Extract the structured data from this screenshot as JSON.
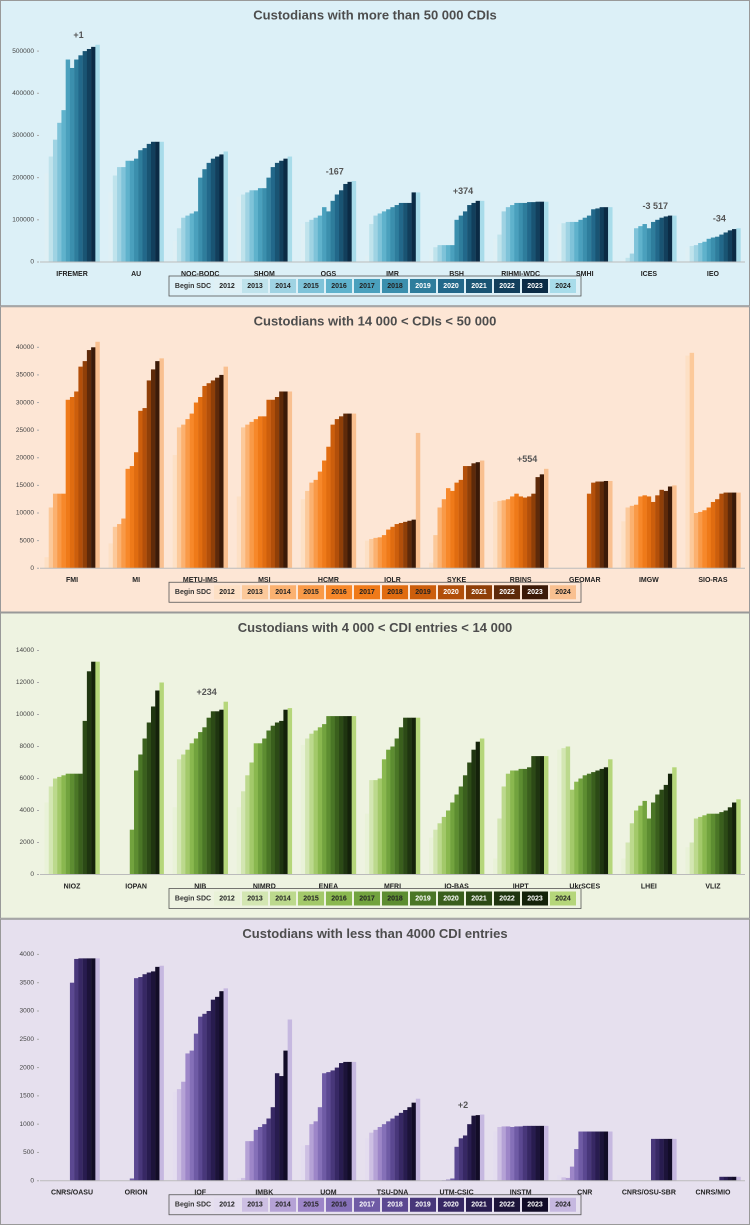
{
  "chart_data": [
    {
      "type": "bar",
      "title": "Custodians with more than 50 000 CDIs",
      "background": "#dcf0f7",
      "legend_title": "Begin SDC",
      "ylim": [
        0,
        550000
      ],
      "yticks": [
        0,
        100000,
        200000,
        300000,
        400000,
        500000
      ],
      "categories": [
        "IFREMER",
        "AU",
        "NOC-BODC",
        "SHOM",
        "OGS",
        "IMR",
        "BSH",
        "RIHMI-WDC",
        "SMHI",
        "ICES",
        "IEO"
      ],
      "series": [
        {
          "name": "2012",
          "color": "#dff0f5"
        },
        {
          "name": "2013",
          "color": "#bfe3ec"
        },
        {
          "name": "2014",
          "color": "#9fd3e3"
        },
        {
          "name": "2015",
          "color": "#7fc3d9"
        },
        {
          "name": "2016",
          "color": "#5fb2cc"
        },
        {
          "name": "2017",
          "color": "#4aa0bd"
        },
        {
          "name": "2018",
          "color": "#3b8fad"
        },
        {
          "name": "2019",
          "color": "#2e7d9c"
        },
        {
          "name": "2020",
          "color": "#22688a"
        },
        {
          "name": "2021",
          "color": "#195473"
        },
        {
          "name": "2022",
          "color": "#123f5c"
        },
        {
          "name": "2023",
          "color": "#0b2b45"
        },
        {
          "name": "2024",
          "color": "#a8dcea"
        }
      ],
      "values": [
        [
          210000,
          250000,
          290000,
          330000,
          360000,
          480000,
          460000,
          480000,
          490000,
          500000,
          505000,
          510000,
          515000
        ],
        [
          165000,
          205000,
          225000,
          225000,
          240000,
          240000,
          245000,
          265000,
          270000,
          280000,
          285000,
          285000,
          285000
        ],
        [
          50000,
          80000,
          105000,
          110000,
          115000,
          120000,
          200000,
          220000,
          235000,
          245000,
          250000,
          255000,
          262000
        ],
        [
          155000,
          160000,
          165000,
          170000,
          170000,
          175000,
          175000,
          200000,
          225000,
          235000,
          240000,
          245000,
          250000
        ],
        [
          90000,
          95000,
          100000,
          105000,
          110000,
          130000,
          120000,
          145000,
          160000,
          170000,
          185000,
          190000,
          192000
        ],
        [
          15000,
          90000,
          110000,
          115000,
          120000,
          125000,
          130000,
          135000,
          140000,
          140000,
          140000,
          165000,
          165000
        ],
        [
          30000,
          35000,
          40000,
          40000,
          40000,
          40000,
          100000,
          110000,
          120000,
          135000,
          140000,
          145000,
          145000
        ],
        [
          55000,
          65000,
          120000,
          130000,
          135000,
          140000,
          140000,
          140000,
          142000,
          142000,
          143000,
          143000,
          143000
        ],
        [
          90000,
          92000,
          95000,
          95000,
          95000,
          100000,
          105000,
          110000,
          125000,
          127000,
          130000,
          130000,
          130000
        ],
        [
          5000,
          10000,
          20000,
          80000,
          85000,
          90000,
          80000,
          95000,
          100000,
          105000,
          108000,
          110000,
          110000
        ],
        [
          35000,
          38000,
          40000,
          45000,
          48000,
          55000,
          58000,
          60000,
          65000,
          70000,
          75000,
          78000,
          80000
        ]
      ],
      "annotations": [
        {
          "category": "IFREMER",
          "text": "+1"
        },
        {
          "category": "OGS",
          "text": "-167"
        },
        {
          "category": "BSH",
          "text": "+374"
        },
        {
          "category": "ICES",
          "text": "-3 517"
        },
        {
          "category": "IEO",
          "text": "-34"
        }
      ]
    },
    {
      "type": "bar",
      "title": "Custodians with 14 000 < CDIs < 50 000",
      "background": "#fde6d5",
      "legend_title": "Begin SDC",
      "ylim": [
        0,
        42000
      ],
      "yticks": [
        0,
        5000,
        10000,
        15000,
        20000,
        25000,
        30000,
        35000,
        40000
      ],
      "categories": [
        "FMI",
        "MI",
        "METU-IMS",
        "MSI",
        "HCMR",
        "IOLR",
        "SYKE",
        "RBINS",
        "GEOMAR",
        "IMGW",
        "SIO-RAS"
      ],
      "series": [
        {
          "name": "2012",
          "color": "#fde0c5"
        },
        {
          "name": "2013",
          "color": "#fcc99a"
        },
        {
          "name": "2014",
          "color": "#fbb170"
        },
        {
          "name": "2015",
          "color": "#f99a48"
        },
        {
          "name": "2016",
          "color": "#f7882a"
        },
        {
          "name": "2017",
          "color": "#ef7a19"
        },
        {
          "name": "2018",
          "color": "#e06c10"
        },
        {
          "name": "2019",
          "color": "#cc5e0c"
        },
        {
          "name": "2020",
          "color": "#b24f0a"
        },
        {
          "name": "2021",
          "color": "#8f3f08"
        },
        {
          "name": "2022",
          "color": "#5e2a0a"
        },
        {
          "name": "2023",
          "color": "#3b1a08"
        },
        {
          "name": "2024",
          "color": "#f9c090"
        }
      ],
      "values": [
        [
          2000,
          11000,
          13500,
          13500,
          13500,
          30500,
          31000,
          32000,
          36500,
          37500,
          39500,
          40000,
          41000
        ],
        [
          4500,
          7500,
          8000,
          9000,
          18000,
          18500,
          21000,
          28500,
          29000,
          34000,
          36000,
          37500,
          38000
        ],
        [
          20500,
          25500,
          26000,
          27000,
          28000,
          30000,
          31000,
          33000,
          33500,
          34000,
          34500,
          35000,
          36500
        ],
        [
          13000,
          25500,
          26000,
          26500,
          27000,
          27500,
          27500,
          30500,
          30500,
          31000,
          32000,
          32000,
          32000
        ],
        [
          12500,
          14000,
          15500,
          16000,
          17500,
          19500,
          22000,
          26000,
          27000,
          27500,
          28000,
          28000,
          28000
        ],
        [
          5000,
          5300,
          5500,
          5600,
          6000,
          7000,
          7500,
          8000,
          8200,
          8400,
          8600,
          8800,
          24500
        ],
        [
          1000,
          6000,
          11000,
          12500,
          14500,
          14000,
          15500,
          16000,
          18500,
          18500,
          19000,
          19200,
          19500
        ],
        [
          12000,
          12200,
          12300,
          12500,
          13000,
          13500,
          13000,
          12800,
          13000,
          13500,
          16500,
          17000,
          18000
        ],
        [
          0,
          0,
          0,
          0,
          0,
          0,
          0,
          13500,
          15500,
          15700,
          15700,
          15800,
          15800
        ],
        [
          8500,
          11000,
          11300,
          11500,
          13000,
          13200,
          13000,
          12000,
          13200,
          14200,
          14000,
          14800,
          15000
        ],
        [
          38500,
          39000,
          10000,
          10200,
          10500,
          11000,
          12000,
          12500,
          13500,
          13700,
          13700,
          13700,
          13700
        ]
      ],
      "annotations": [
        {
          "category": "RBINS",
          "text": "+554"
        }
      ]
    },
    {
      "type": "bar",
      "title": "Custodians with 4 000 < CDI entries < 14 000",
      "background": "#eef3e1",
      "legend_title": "Begin SDC",
      "ylim": [
        0,
        14500
      ],
      "yticks": [
        0,
        2000,
        4000,
        6000,
        8000,
        10000,
        12000,
        14000
      ],
      "categories": [
        "NIOZ",
        "IOPAN",
        "NIB",
        "NIMRD",
        "ENEA",
        "MFRI",
        "IO-BAS",
        "IHPT",
        "UkrSCES",
        "LHEI",
        "VLIZ"
      ],
      "series": [
        {
          "name": "2012",
          "color": "#e9f2d8"
        },
        {
          "name": "2013",
          "color": "#d3e6b2"
        },
        {
          "name": "2014",
          "color": "#bcd98d"
        },
        {
          "name": "2015",
          "color": "#a3c96a"
        },
        {
          "name": "2016",
          "color": "#8ab84f"
        },
        {
          "name": "2017",
          "color": "#72a33e"
        },
        {
          "name": "2018",
          "color": "#5d8d31"
        },
        {
          "name": "2019",
          "color": "#4a7626"
        },
        {
          "name": "2020",
          "color": "#3a5f1d"
        },
        {
          "name": "2021",
          "color": "#2c4a16"
        },
        {
          "name": "2022",
          "color": "#1f3510"
        },
        {
          "name": "2023",
          "color": "#14220a"
        },
        {
          "name": "2024",
          "color": "#b5d67a"
        }
      ],
      "values": [
        [
          4500,
          5500,
          6000,
          6100,
          6200,
          6300,
          6300,
          6300,
          6300,
          9600,
          12700,
          13300,
          13300
        ],
        [
          0,
          0,
          0,
          0,
          0,
          2800,
          6500,
          7500,
          8500,
          9500,
          10500,
          11500,
          12000
        ],
        [
          4200,
          7200,
          7500,
          7800,
          8200,
          8500,
          8900,
          9200,
          9800,
          10200,
          10200,
          10300,
          10800
        ],
        [
          4200,
          5200,
          6200,
          7000,
          8200,
          8200,
          8500,
          9000,
          9300,
          9500,
          9600,
          10300,
          10400
        ],
        [
          8100,
          8500,
          8800,
          9000,
          9200,
          9400,
          9900,
          9900,
          9900,
          9900,
          9900,
          9900,
          9900
        ],
        [
          3800,
          5900,
          5900,
          6000,
          7200,
          7800,
          8000,
          8500,
          9200,
          9800,
          9800,
          9800,
          9800
        ],
        [
          2300,
          2800,
          3200,
          3600,
          4000,
          4500,
          5000,
          5500,
          6200,
          7000,
          7800,
          8300,
          8500
        ],
        [
          1000,
          3500,
          5500,
          6300,
          6500,
          6500,
          6600,
          6600,
          6700,
          7400,
          7400,
          7400,
          7400
        ],
        [
          7800,
          7900,
          8000,
          5300,
          5800,
          6000,
          6200,
          6300,
          6400,
          6500,
          6600,
          6700,
          7200
        ],
        [
          1000,
          2000,
          3200,
          4000,
          4300,
          4600,
          3500,
          4500,
          5000,
          5300,
          5600,
          6300,
          6700
        ],
        [
          1700,
          2000,
          3500,
          3600,
          3700,
          3800,
          3800,
          3800,
          3900,
          4000,
          4200,
          4500,
          4700
        ]
      ],
      "annotations": [
        {
          "category": "NIB",
          "text": "+234"
        }
      ]
    },
    {
      "type": "bar",
      "title": "Custodians with less than  4000 CDI entries",
      "background": "#e6e0ee",
      "legend_title": "Begin SDC",
      "ylim": [
        0,
        4100
      ],
      "yticks": [
        0,
        500,
        1000,
        1500,
        2000,
        2500,
        3000,
        3500,
        4000
      ],
      "categories": [
        "CNRS/OASU",
        "ORION",
        "IOF",
        "IMBK",
        "UOM",
        "TSU-DNA",
        "UTM-CSIC",
        "INSTM",
        "CNR",
        "CNRS/OSU-SBR",
        "CNRS/MIO"
      ],
      "series": [
        {
          "name": "2012",
          "color": "#e4ddef"
        },
        {
          "name": "2013",
          "color": "#cdbfe3"
        },
        {
          "name": "2014",
          "color": "#b5a2d6"
        },
        {
          "name": "2015",
          "color": "#9d86c8"
        },
        {
          "name": "2016",
          "color": "#8570b8"
        },
        {
          "name": "2017",
          "color": "#6f5ba5"
        },
        {
          "name": "2018",
          "color": "#5b4891"
        },
        {
          "name": "2019",
          "color": "#48377a"
        },
        {
          "name": "2020",
          "color": "#372864"
        },
        {
          "name": "2021",
          "color": "#281c4f"
        },
        {
          "name": "2022",
          "color": "#1c1339"
        },
        {
          "name": "2023",
          "color": "#120c27"
        },
        {
          "name": "2024",
          "color": "#c6b8e0"
        }
      ],
      "values": [
        [
          0,
          0,
          0,
          0,
          0,
          0,
          3500,
          3920,
          3930,
          3930,
          3930,
          3930,
          3930
        ],
        [
          0,
          0,
          0,
          0,
          0,
          40,
          3580,
          3600,
          3650,
          3680,
          3700,
          3780,
          3800
        ],
        [
          1570,
          1620,
          1750,
          2250,
          2300,
          2600,
          2900,
          2950,
          3000,
          3200,
          3250,
          3350,
          3400
        ],
        [
          50,
          50,
          700,
          700,
          900,
          950,
          1000,
          1100,
          1300,
          1900,
          1850,
          2300,
          2850
        ],
        [
          620,
          630,
          1000,
          1050,
          1300,
          1900,
          1920,
          1950,
          2000,
          2080,
          2100,
          2100,
          2100
        ],
        [
          750,
          850,
          900,
          950,
          1000,
          1050,
          1100,
          1150,
          1200,
          1250,
          1300,
          1380,
          1450
        ],
        [
          0,
          0,
          0,
          10,
          20,
          40,
          600,
          750,
          800,
          1000,
          1150,
          1160,
          1170
        ],
        [
          870,
          950,
          960,
          960,
          950,
          960,
          960,
          970,
          970,
          970,
          970,
          970,
          970
        ],
        [
          100,
          60,
          50,
          250,
          560,
          870,
          870,
          870,
          870,
          870,
          870,
          870,
          870
        ],
        [
          0,
          0,
          0,
          0,
          0,
          0,
          0,
          740,
          740,
          740,
          740,
          740,
          740
        ],
        [
          0,
          0,
          0,
          0,
          0,
          0,
          0,
          0,
          70,
          70,
          70,
          70,
          70
        ]
      ],
      "annotations": [
        {
          "category": "UTM-CSIC",
          "text": "+2"
        }
      ]
    }
  ]
}
